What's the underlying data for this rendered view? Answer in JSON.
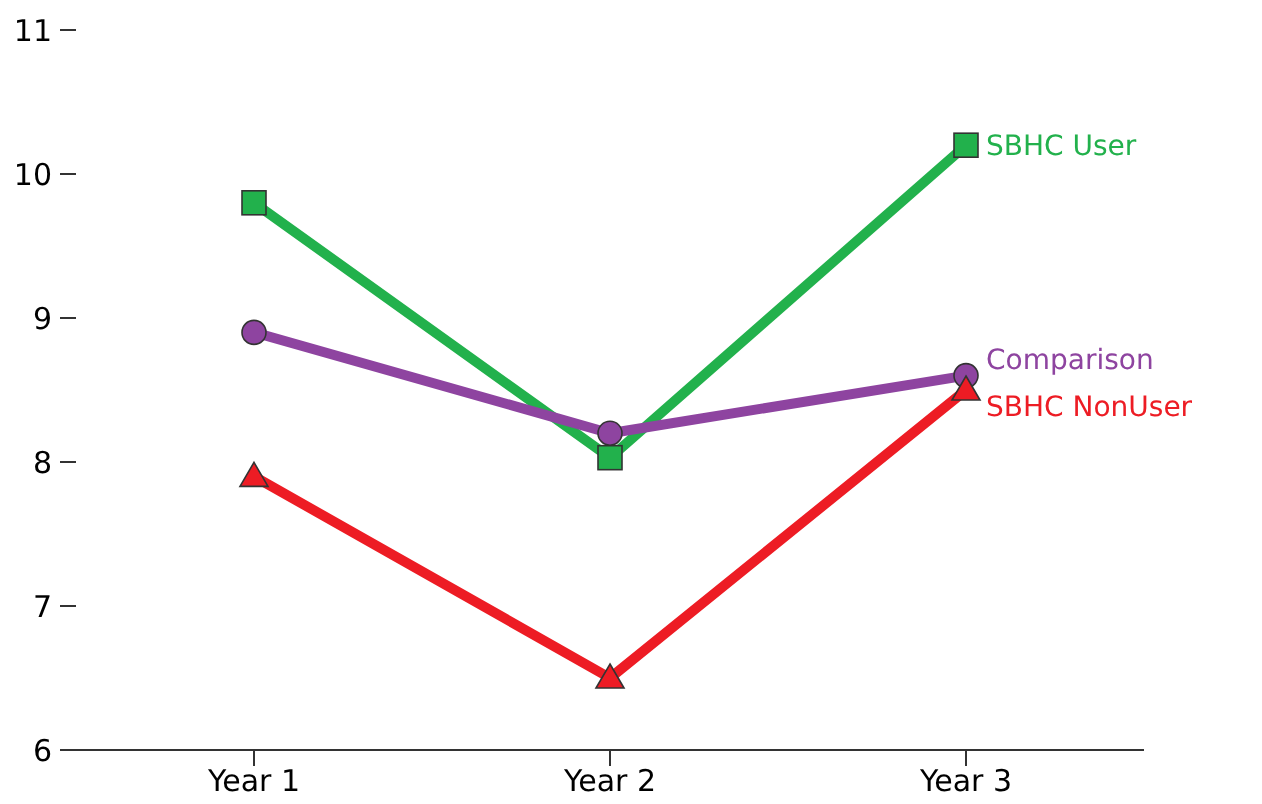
{
  "chart_data": {
    "type": "line",
    "categories": [
      "Year 1",
      "Year 2",
      "Year 3"
    ],
    "ylim": [
      6,
      11
    ],
    "yticks": [
      6,
      7,
      8,
      9,
      10,
      11
    ],
    "grid": false,
    "legend": false,
    "series": [
      {
        "name": "SBHC User",
        "color": "#22b14c",
        "marker": "square",
        "values": [
          9.8,
          8.03,
          10.2
        ]
      },
      {
        "name": "Comparison",
        "color": "#8e44a0",
        "marker": "circle",
        "values": [
          8.9,
          8.2,
          8.6
        ]
      },
      {
        "name": "SBHC NonUser",
        "color": "#ed1c24",
        "marker": "triangle",
        "values": [
          7.9,
          6.5,
          8.5
        ]
      }
    ]
  }
}
